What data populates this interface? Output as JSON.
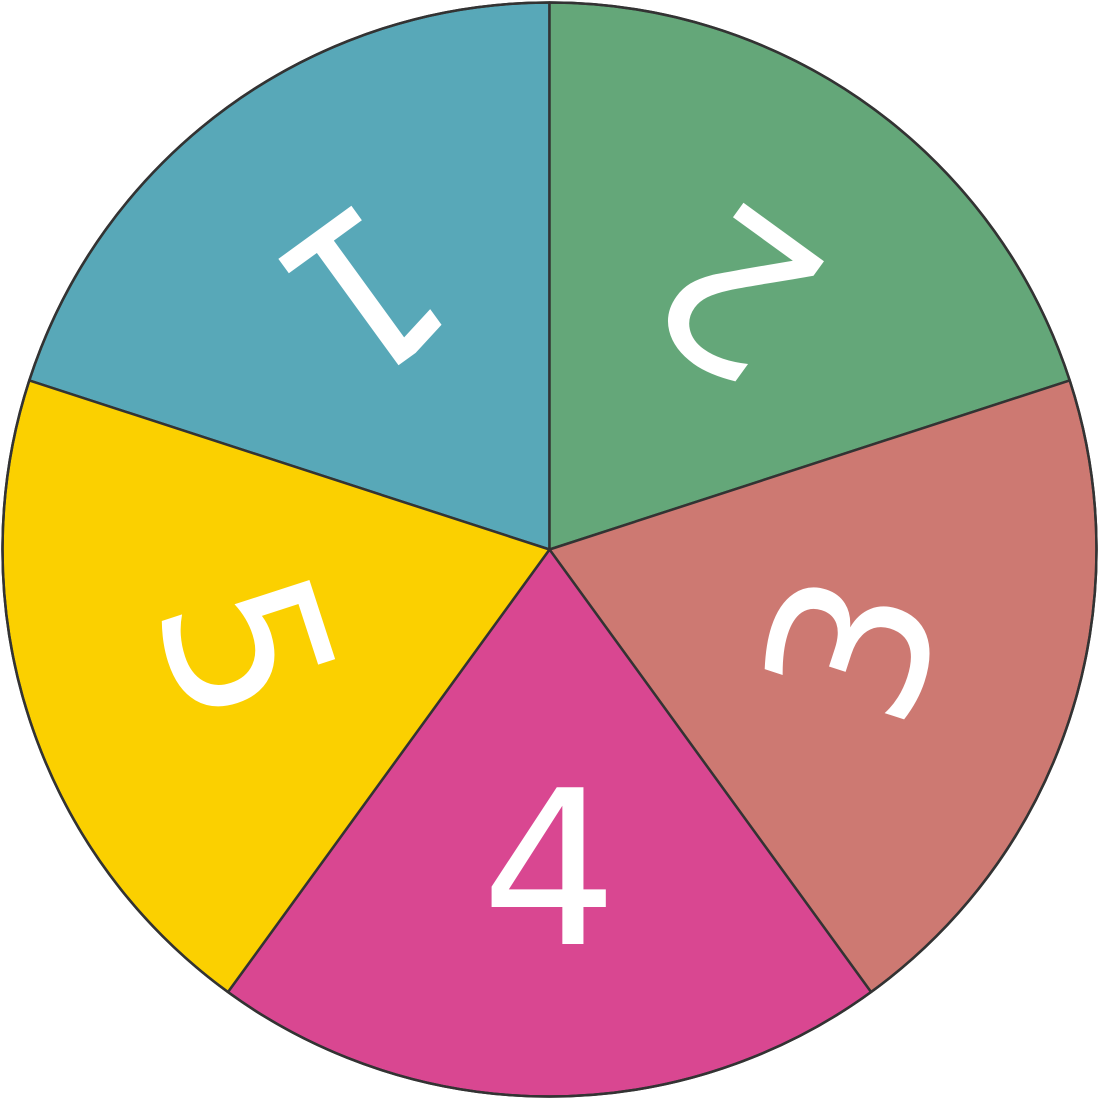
{
  "spinner": {
    "outline_color": "#333333",
    "label_color": "#ffffff",
    "sectors": [
      {
        "label": "1",
        "color": "#58A8B8"
      },
      {
        "label": "2",
        "color": "#64A779"
      },
      {
        "label": "3",
        "color": "#CD7972"
      },
      {
        "label": "4",
        "color": "#D94791"
      },
      {
        "label": "5",
        "color": "#FBD000"
      }
    ]
  }
}
